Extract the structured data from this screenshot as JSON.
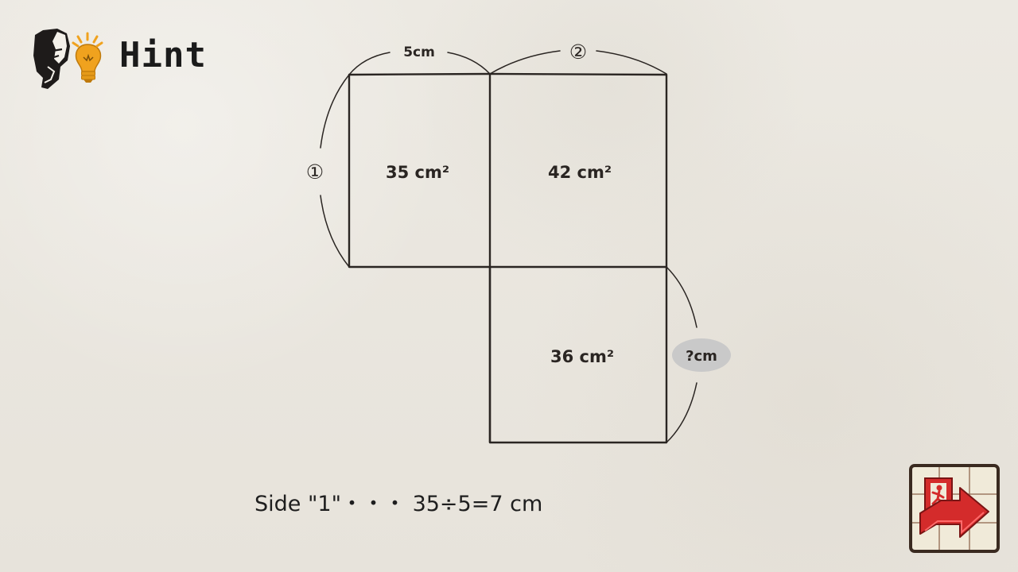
{
  "header": {
    "title": "Hint"
  },
  "diagram": {
    "top_length": "5cm",
    "top_right_marker": "②",
    "left_marker": "①",
    "area_top_left": "35 cm²",
    "area_top_right": "42 cm²",
    "area_bottom": "36 cm²",
    "unknown_side": "?cm"
  },
  "hint_text": "Side \"1\"・・・ 35÷5=7 cm",
  "exit_button": {
    "icon": "exit-door-icon",
    "color": "#d42b2b"
  },
  "colors": {
    "ink": "#2a2522",
    "bulb": "#f0a21e",
    "bubble": "#c9c9c9"
  }
}
